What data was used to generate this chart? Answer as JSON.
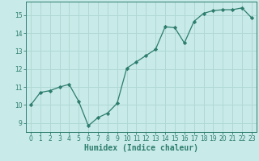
{
  "x_vals": [
    0,
    1,
    2,
    3,
    4,
    5,
    6,
    7,
    8,
    9,
    10,
    11,
    12,
    13,
    14,
    15,
    16,
    17,
    18,
    19,
    20,
    21,
    22,
    23
  ],
  "y_vals": [
    10.0,
    10.7,
    10.8,
    11.0,
    11.15,
    10.2,
    8.85,
    9.3,
    9.55,
    10.1,
    12.05,
    12.4,
    12.75,
    13.1,
    14.35,
    14.3,
    13.45,
    14.65,
    15.1,
    15.25,
    15.3,
    15.3,
    15.4,
    14.85
  ],
  "line_color": "#2d7d6e",
  "marker_color": "#2d7d6e",
  "bg_color": "#c8eae8",
  "grid_color": "#b0d8d4",
  "xlabel": "Humidex (Indice chaleur)",
  "xlim": [
    -0.5,
    23.5
  ],
  "ylim": [
    8.5,
    15.75
  ],
  "yticks": [
    9,
    10,
    11,
    12,
    13,
    14,
    15
  ],
  "xticks": [
    0,
    1,
    2,
    3,
    4,
    5,
    6,
    7,
    8,
    9,
    10,
    11,
    12,
    13,
    14,
    15,
    16,
    17,
    18,
    19,
    20,
    21,
    22,
    23
  ],
  "tick_label_fontsize": 5.5,
  "xlabel_fontsize": 7.0,
  "linewidth": 0.9,
  "markersize": 2.2
}
